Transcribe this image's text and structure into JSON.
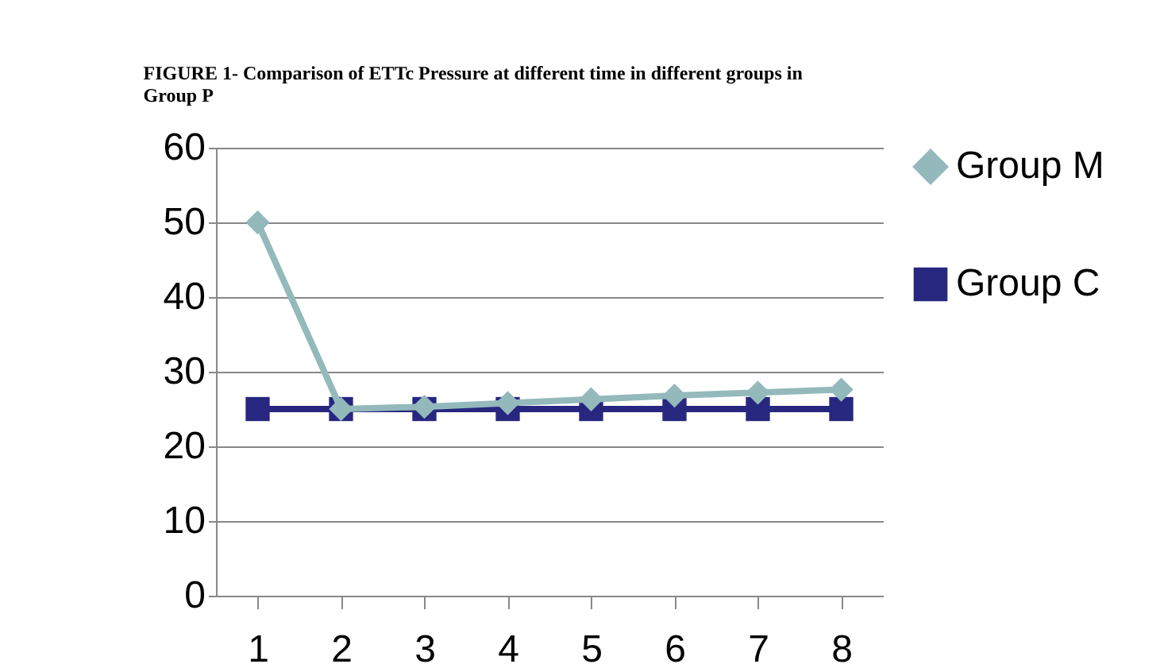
{
  "chart_data": {
    "type": "line",
    "title": [
      "FIGURE 1- Comparison of ETTc Pressure at different time in different groups in",
      "Group P"
    ],
    "categories": [
      "1",
      "2",
      "3",
      "4",
      "5",
      "6",
      "7",
      "8"
    ],
    "series": [
      {
        "name": "Group M",
        "color": "#93b9bb",
        "marker": "diamond",
        "values": [
          50,
          25,
          25.3,
          25.8,
          26.3,
          26.8,
          27.2,
          27.6
        ]
      },
      {
        "name": "Group C",
        "color": "#27277f",
        "marker": "square",
        "values": [
          25,
          25,
          25,
          25,
          25,
          25,
          25,
          25
        ]
      }
    ],
    "ylim": [
      0,
      60
    ],
    "yticks": [
      0,
      10,
      20,
      30,
      40,
      50,
      60
    ],
    "grid": "y",
    "legend": "right",
    "line_style": "solid"
  }
}
